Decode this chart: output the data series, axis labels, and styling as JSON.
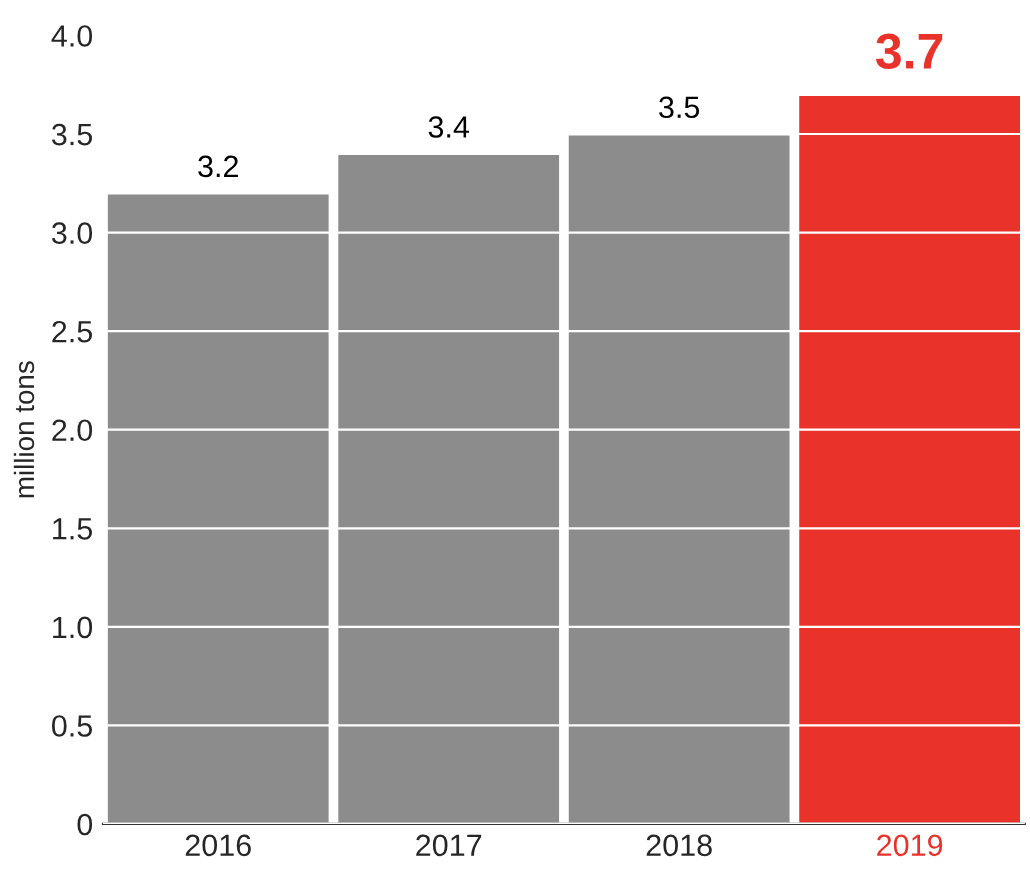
{
  "chart_data": {
    "type": "bar",
    "ylabel": "million tons",
    "categories": [
      "2016",
      "2017",
      "2018",
      "2019"
    ],
    "values": [
      3.2,
      3.4,
      3.5,
      3.7
    ],
    "colors": [
      "#8c8c8c",
      "#8c8c8c",
      "#8c8c8c",
      "#e8322a"
    ],
    "ylim": [
      0,
      4.0
    ],
    "yticks": [
      0,
      {
        "value": 0.5,
        "label": "0.5"
      },
      {
        "value": 1,
        "label": "1.0"
      },
      {
        "value": 1.5,
        "label": "1.5"
      },
      {
        "value": 2,
        "label": "2.0"
      },
      {
        "value": 2.5,
        "label": "2.5"
      },
      {
        "value": 3,
        "label": "3.0"
      },
      {
        "value": 3.5,
        "label": "3.5"
      },
      {
        "value": 4,
        "label": "4.0"
      }
    ],
    "grid": "y",
    "data_labels": true
  }
}
